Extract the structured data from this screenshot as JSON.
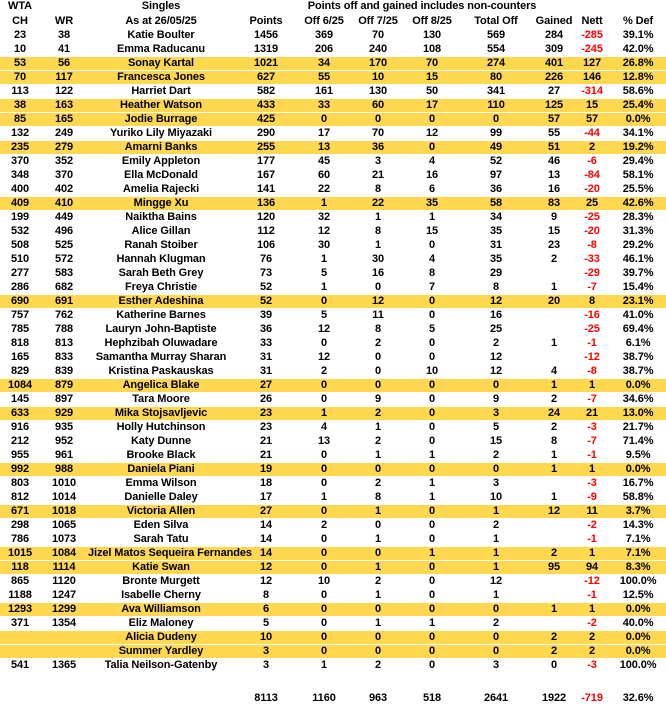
{
  "colors": {
    "highlight": "#FFD84F",
    "negative_text": "#FF0000"
  },
  "header": {
    "group_left": "WTA",
    "group_singles": "Singles",
    "group_note": "Points off and gained includes non-counters",
    "columns": [
      "CH",
      "WR",
      "As at 26/05/25",
      "Points",
      "Off 6/25",
      "Off 7/25",
      "Off 8/25",
      "Total Off",
      "Gained",
      "Nett",
      "% Def"
    ]
  },
  "rows": [
    {
      "ch": "23",
      "wr": "38",
      "name": "Katie Boulter",
      "points": "1456",
      "off_6_25": "369",
      "off_7_25": "70",
      "off_8_25": "130",
      "total_off": "569",
      "gained": "284",
      "nett": "-285",
      "pct_def": "39.1%",
      "highlight": false
    },
    {
      "ch": "10",
      "wr": "41",
      "name": "Emma Raducanu",
      "points": "1319",
      "off_6_25": "206",
      "off_7_25": "240",
      "off_8_25": "108",
      "total_off": "554",
      "gained": "309",
      "nett": "-245",
      "pct_def": "42.0%",
      "highlight": false
    },
    {
      "ch": "53",
      "wr": "56",
      "name": "Sonay Kartal",
      "points": "1021",
      "off_6_25": "34",
      "off_7_25": "170",
      "off_8_25": "70",
      "total_off": "274",
      "gained": "401",
      "nett": "127",
      "pct_def": "26.8%",
      "highlight": true
    },
    {
      "ch": "70",
      "wr": "117",
      "name": "Francesca Jones",
      "points": "627",
      "off_6_25": "55",
      "off_7_25": "10",
      "off_8_25": "15",
      "total_off": "80",
      "gained": "226",
      "nett": "146",
      "pct_def": "12.8%",
      "highlight": true
    },
    {
      "ch": "113",
      "wr": "122",
      "name": "Harriet Dart",
      "points": "582",
      "off_6_25": "161",
      "off_7_25": "130",
      "off_8_25": "50",
      "total_off": "341",
      "gained": "27",
      "nett": "-314",
      "pct_def": "58.6%",
      "highlight": false
    },
    {
      "ch": "38",
      "wr": "163",
      "name": "Heather Watson",
      "points": "433",
      "off_6_25": "33",
      "off_7_25": "60",
      "off_8_25": "17",
      "total_off": "110",
      "gained": "125",
      "nett": "15",
      "pct_def": "25.4%",
      "highlight": true
    },
    {
      "ch": "85",
      "wr": "165",
      "name": "Jodie Burrage",
      "points": "425",
      "off_6_25": "0",
      "off_7_25": "0",
      "off_8_25": "0",
      "total_off": "0",
      "gained": "57",
      "nett": "57",
      "pct_def": "0.0%",
      "highlight": true
    },
    {
      "ch": "132",
      "wr": "249",
      "name": "Yuriko Lily Miyazaki",
      "points": "290",
      "off_6_25": "17",
      "off_7_25": "70",
      "off_8_25": "12",
      "total_off": "99",
      "gained": "55",
      "nett": "-44",
      "pct_def": "34.1%",
      "highlight": false
    },
    {
      "ch": "235",
      "wr": "279",
      "name": "Amarni Banks",
      "points": "255",
      "off_6_25": "13",
      "off_7_25": "36",
      "off_8_25": "0",
      "total_off": "49",
      "gained": "51",
      "nett": "2",
      "pct_def": "19.2%",
      "highlight": true
    },
    {
      "ch": "370",
      "wr": "352",
      "name": "Emily Appleton",
      "points": "177",
      "off_6_25": "45",
      "off_7_25": "3",
      "off_8_25": "4",
      "total_off": "52",
      "gained": "46",
      "nett": "-6",
      "pct_def": "29.4%",
      "highlight": false
    },
    {
      "ch": "348",
      "wr": "370",
      "name": "Ella McDonald",
      "points": "167",
      "off_6_25": "60",
      "off_7_25": "21",
      "off_8_25": "16",
      "total_off": "97",
      "gained": "13",
      "nett": "-84",
      "pct_def": "58.1%",
      "highlight": false
    },
    {
      "ch": "400",
      "wr": "402",
      "name": "Amelia Rajecki",
      "points": "141",
      "off_6_25": "22",
      "off_7_25": "8",
      "off_8_25": "6",
      "total_off": "36",
      "gained": "16",
      "nett": "-20",
      "pct_def": "25.5%",
      "highlight": false
    },
    {
      "ch": "409",
      "wr": "410",
      "name": "Mingge Xu",
      "points": "136",
      "off_6_25": "1",
      "off_7_25": "22",
      "off_8_25": "35",
      "total_off": "58",
      "gained": "83",
      "nett": "25",
      "pct_def": "42.6%",
      "highlight": true
    },
    {
      "ch": "199",
      "wr": "449",
      "name": "Naiktha Bains",
      "points": "120",
      "off_6_25": "32",
      "off_7_25": "1",
      "off_8_25": "1",
      "total_off": "34",
      "gained": "9",
      "nett": "-25",
      "pct_def": "28.3%",
      "highlight": false
    },
    {
      "ch": "532",
      "wr": "496",
      "name": "Alice Gillan",
      "points": "112",
      "off_6_25": "12",
      "off_7_25": "8",
      "off_8_25": "15",
      "total_off": "35",
      "gained": "15",
      "nett": "-20",
      "pct_def": "31.3%",
      "highlight": false
    },
    {
      "ch": "508",
      "wr": "525",
      "name": "Ranah Stoiber",
      "points": "106",
      "off_6_25": "30",
      "off_7_25": "1",
      "off_8_25": "0",
      "total_off": "31",
      "gained": "23",
      "nett": "-8",
      "pct_def": "29.2%",
      "highlight": false
    },
    {
      "ch": "510",
      "wr": "572",
      "name": "Hannah Klugman",
      "points": "76",
      "off_6_25": "1",
      "off_7_25": "30",
      "off_8_25": "4",
      "total_off": "35",
      "gained": "2",
      "nett": "-33",
      "pct_def": "46.1%",
      "highlight": false
    },
    {
      "ch": "277",
      "wr": "583",
      "name": "Sarah Beth Grey",
      "points": "73",
      "off_6_25": "5",
      "off_7_25": "16",
      "off_8_25": "8",
      "total_off": "29",
      "gained": "",
      "nett": "-29",
      "pct_def": "39.7%",
      "highlight": false
    },
    {
      "ch": "286",
      "wr": "682",
      "name": "Freya Christie",
      "points": "52",
      "off_6_25": "1",
      "off_7_25": "0",
      "off_8_25": "7",
      "total_off": "8",
      "gained": "1",
      "nett": "-7",
      "pct_def": "15.4%",
      "highlight": false
    },
    {
      "ch": "690",
      "wr": "691",
      "name": "Esther Adeshina",
      "points": "52",
      "off_6_25": "0",
      "off_7_25": "12",
      "off_8_25": "0",
      "total_off": "12",
      "gained": "20",
      "nett": "8",
      "pct_def": "23.1%",
      "highlight": true
    },
    {
      "ch": "757",
      "wr": "762",
      "name": "Katherine Barnes",
      "points": "39",
      "off_6_25": "5",
      "off_7_25": "11",
      "off_8_25": "0",
      "total_off": "16",
      "gained": "",
      "nett": "-16",
      "pct_def": "41.0%",
      "highlight": false
    },
    {
      "ch": "785",
      "wr": "788",
      "name": "Lauryn John-Baptiste",
      "points": "36",
      "off_6_25": "12",
      "off_7_25": "8",
      "off_8_25": "5",
      "total_off": "25",
      "gained": "",
      "nett": "-25",
      "pct_def": "69.4%",
      "highlight": false
    },
    {
      "ch": "818",
      "wr": "813",
      "name": "Hephzibah Oluwadare",
      "points": "33",
      "off_6_25": "0",
      "off_7_25": "2",
      "off_8_25": "0",
      "total_off": "2",
      "gained": "1",
      "nett": "-1",
      "pct_def": "6.1%",
      "highlight": false
    },
    {
      "ch": "165",
      "wr": "833",
      "name": "Samantha Murray Sharan",
      "points": "31",
      "off_6_25": "12",
      "off_7_25": "0",
      "off_8_25": "0",
      "total_off": "12",
      "gained": "",
      "nett": "-12",
      "pct_def": "38.7%",
      "highlight": false
    },
    {
      "ch": "829",
      "wr": "839",
      "name": "Kristina Paskauskas",
      "points": "31",
      "off_6_25": "2",
      "off_7_25": "0",
      "off_8_25": "10",
      "total_off": "12",
      "gained": "4",
      "nett": "-8",
      "pct_def": "38.7%",
      "highlight": false
    },
    {
      "ch": "1084",
      "wr": "879",
      "name": "Angelica Blake",
      "points": "27",
      "off_6_25": "0",
      "off_7_25": "0",
      "off_8_25": "0",
      "total_off": "0",
      "gained": "1",
      "nett": "1",
      "pct_def": "0.0%",
      "highlight": true
    },
    {
      "ch": "145",
      "wr": "897",
      "name": "Tara Moore",
      "points": "26",
      "off_6_25": "0",
      "off_7_25": "9",
      "off_8_25": "0",
      "total_off": "9",
      "gained": "2",
      "nett": "-7",
      "pct_def": "34.6%",
      "highlight": false
    },
    {
      "ch": "633",
      "wr": "929",
      "name": "Mika Stojsavljevic",
      "points": "23",
      "off_6_25": "1",
      "off_7_25": "2",
      "off_8_25": "0",
      "total_off": "3",
      "gained": "24",
      "nett": "21",
      "pct_def": "13.0%",
      "highlight": true
    },
    {
      "ch": "916",
      "wr": "935",
      "name": "Holly Hutchinson",
      "points": "23",
      "off_6_25": "4",
      "off_7_25": "1",
      "off_8_25": "0",
      "total_off": "5",
      "gained": "2",
      "nett": "-3",
      "pct_def": "21.7%",
      "highlight": false
    },
    {
      "ch": "212",
      "wr": "952",
      "name": "Katy Dunne",
      "points": "21",
      "off_6_25": "13",
      "off_7_25": "2",
      "off_8_25": "0",
      "total_off": "15",
      "gained": "8",
      "nett": "-7",
      "pct_def": "71.4%",
      "highlight": false
    },
    {
      "ch": "955",
      "wr": "961",
      "name": "Brooke Black",
      "points": "21",
      "off_6_25": "0",
      "off_7_25": "1",
      "off_8_25": "1",
      "total_off": "2",
      "gained": "1",
      "nett": "-1",
      "pct_def": "9.5%",
      "highlight": false
    },
    {
      "ch": "992",
      "wr": "988",
      "name": "Daniela Piani",
      "points": "19",
      "off_6_25": "0",
      "off_7_25": "0",
      "off_8_25": "0",
      "total_off": "0",
      "gained": "1",
      "nett": "1",
      "pct_def": "0.0%",
      "highlight": true
    },
    {
      "ch": "803",
      "wr": "1010",
      "name": "Emma Wilson",
      "points": "18",
      "off_6_25": "0",
      "off_7_25": "2",
      "off_8_25": "1",
      "total_off": "3",
      "gained": "",
      "nett": "-3",
      "pct_def": "16.7%",
      "highlight": false
    },
    {
      "ch": "812",
      "wr": "1014",
      "name": "Danielle Daley",
      "points": "17",
      "off_6_25": "1",
      "off_7_25": "8",
      "off_8_25": "1",
      "total_off": "10",
      "gained": "1",
      "nett": "-9",
      "pct_def": "58.8%",
      "highlight": false
    },
    {
      "ch": "671",
      "wr": "1018",
      "name": "Victoria Allen",
      "points": "27",
      "off_6_25": "0",
      "off_7_25": "1",
      "off_8_25": "0",
      "total_off": "1",
      "gained": "12",
      "nett": "11",
      "pct_def": "3.7%",
      "highlight": true
    },
    {
      "ch": "298",
      "wr": "1065",
      "name": "Eden Silva",
      "points": "14",
      "off_6_25": "2",
      "off_7_25": "0",
      "off_8_25": "0",
      "total_off": "2",
      "gained": "",
      "nett": "-2",
      "pct_def": "14.3%",
      "highlight": false
    },
    {
      "ch": "786",
      "wr": "1073",
      "name": "Sarah Tatu",
      "points": "14",
      "off_6_25": "0",
      "off_7_25": "1",
      "off_8_25": "0",
      "total_off": "1",
      "gained": "",
      "nett": "-1",
      "pct_def": "7.1%",
      "highlight": false
    },
    {
      "ch": "1015",
      "wr": "1084",
      "name": "Jizel Matos Sequeira Fernandes",
      "points": "14",
      "off_6_25": "0",
      "off_7_25": "0",
      "off_8_25": "1",
      "total_off": "1",
      "gained": "2",
      "nett": "1",
      "pct_def": "7.1%",
      "highlight": true
    },
    {
      "ch": "118",
      "wr": "1114",
      "name": "Katie Swan",
      "points": "12",
      "off_6_25": "0",
      "off_7_25": "1",
      "off_8_25": "0",
      "total_off": "1",
      "gained": "95",
      "nett": "94",
      "pct_def": "8.3%",
      "highlight": true
    },
    {
      "ch": "865",
      "wr": "1120",
      "name": "Bronte Murgett",
      "points": "12",
      "off_6_25": "10",
      "off_7_25": "2",
      "off_8_25": "0",
      "total_off": "12",
      "gained": "",
      "nett": "-12",
      "pct_def": "100.0%",
      "highlight": false
    },
    {
      "ch": "1188",
      "wr": "1247",
      "name": "Isabelle Cherny",
      "points": "8",
      "off_6_25": "0",
      "off_7_25": "1",
      "off_8_25": "0",
      "total_off": "1",
      "gained": "",
      "nett": "-1",
      "pct_def": "12.5%",
      "highlight": false
    },
    {
      "ch": "1293",
      "wr": "1299",
      "name": "Ava Williamson",
      "points": "6",
      "off_6_25": "0",
      "off_7_25": "0",
      "off_8_25": "0",
      "total_off": "0",
      "gained": "1",
      "nett": "1",
      "pct_def": "0.0%",
      "highlight": true
    },
    {
      "ch": "371",
      "wr": "1354",
      "name": "Eliz Maloney",
      "points": "5",
      "off_6_25": "0",
      "off_7_25": "1",
      "off_8_25": "1",
      "total_off": "2",
      "gained": "",
      "nett": "-2",
      "pct_def": "40.0%",
      "highlight": false
    },
    {
      "ch": "",
      "wr": "",
      "name": "Alicia Dudeny",
      "points": "10",
      "off_6_25": "0",
      "off_7_25": "0",
      "off_8_25": "0",
      "total_off": "0",
      "gained": "2",
      "nett": "2",
      "pct_def": "0.0%",
      "highlight": true
    },
    {
      "ch": "",
      "wr": "",
      "name": "Summer Yardley",
      "points": "3",
      "off_6_25": "0",
      "off_7_25": "0",
      "off_8_25": "0",
      "total_off": "0",
      "gained": "2",
      "nett": "2",
      "pct_def": "0.0%",
      "highlight": true
    },
    {
      "ch": "541",
      "wr": "1365",
      "name": "Talia Neilson-Gatenby",
      "points": "3",
      "off_6_25": "1",
      "off_7_25": "2",
      "off_8_25": "0",
      "total_off": "3",
      "gained": "0",
      "nett": "-3",
      "pct_def": "100.0%",
      "highlight": false
    }
  ],
  "totals": {
    "points": "8113",
    "off_6_25": "1160",
    "off_7_25": "963",
    "off_8_25": "518",
    "total_off": "2641",
    "gained": "1922",
    "nett": "-719",
    "pct_def": "32.6%"
  }
}
